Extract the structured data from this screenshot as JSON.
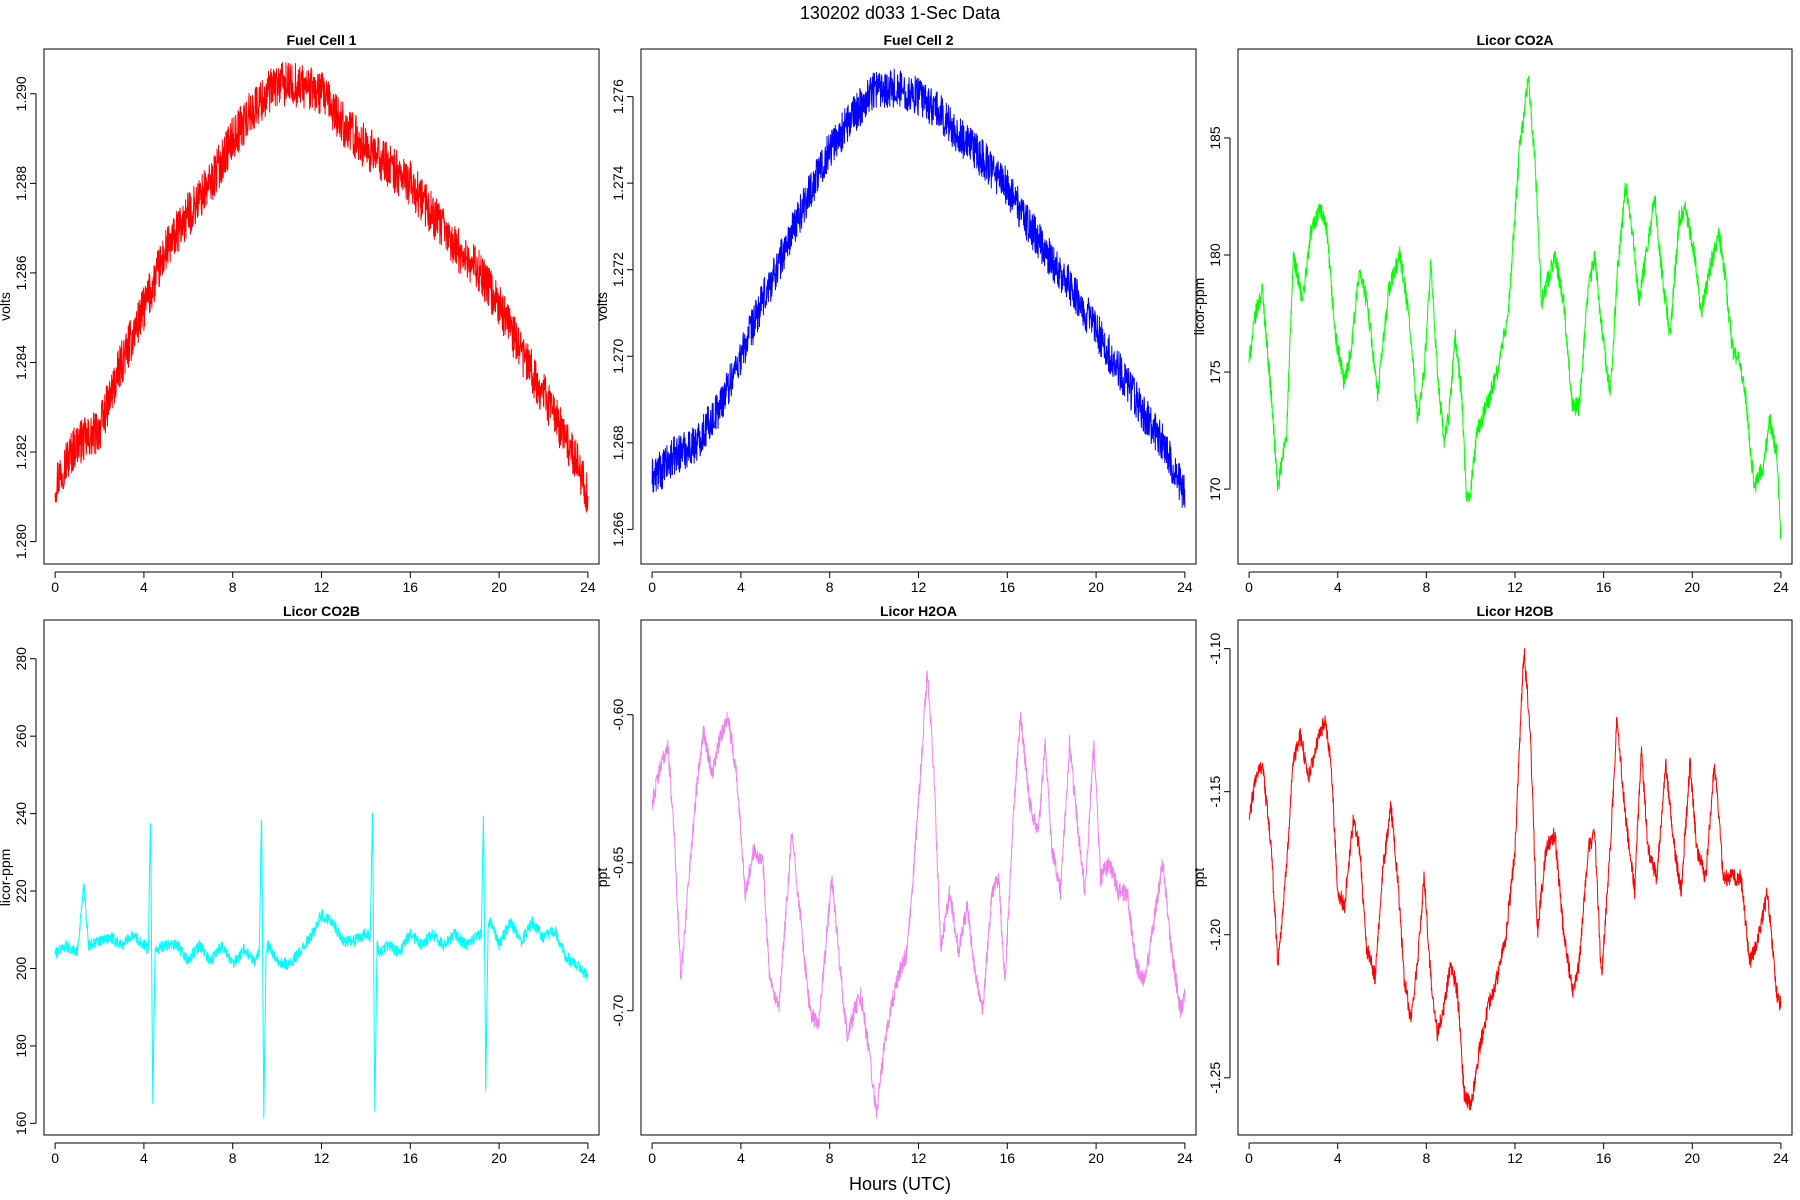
{
  "page": {
    "title": "130202   d033   1-Sec Data",
    "xlabel": "Hours (UTC)"
  },
  "chart_data": [
    {
      "type": "line",
      "title": "Fuel Cell 1",
      "ylabel": "volts",
      "color": "#ff0000",
      "xlim": [
        -0.5,
        24.5
      ],
      "ylim": [
        1.2795,
        1.291
      ],
      "xticks": [
        0,
        4,
        8,
        12,
        16,
        20,
        24
      ],
      "yticks": [
        1.28,
        1.282,
        1.284,
        1.286,
        1.288,
        1.29
      ],
      "ytick_labels": [
        "1.280",
        "1.282",
        "1.284",
        "1.286",
        "1.288",
        "1.290"
      ],
      "band": 0.0005,
      "series": [
        {
          "x": [
            0,
            0.5,
            1,
            1.5,
            2,
            3,
            4,
            5,
            6,
            7,
            8,
            9,
            10,
            11,
            12,
            13,
            14,
            15,
            16,
            17,
            18,
            19,
            20,
            21,
            22,
            23,
            23.5,
            24
          ],
          "values": [
            1.2813,
            1.2818,
            1.2822,
            1.2823,
            1.2825,
            1.284,
            1.2852,
            1.2865,
            1.2873,
            1.288,
            1.289,
            1.2897,
            1.2902,
            1.2902,
            1.29,
            1.2893,
            1.2888,
            1.2884,
            1.288,
            1.2873,
            1.2866,
            1.2861,
            1.2853,
            1.2842,
            1.2833,
            1.2823,
            1.2818,
            1.281
          ]
        }
      ]
    },
    {
      "type": "line",
      "title": "Fuel Cell 2",
      "ylabel": "volts",
      "color": "#0000ff",
      "xlim": [
        -0.5,
        24.5
      ],
      "ylim": [
        1.2652,
        1.2771
      ],
      "xticks": [
        0,
        4,
        8,
        12,
        16,
        20,
        24
      ],
      "yticks": [
        1.266,
        1.268,
        1.27,
        1.272,
        1.274,
        1.276
      ],
      "ytick_labels": [
        "1.266",
        "1.268",
        "1.270",
        "1.272",
        "1.274",
        "1.276"
      ],
      "band": 0.00045,
      "series": [
        {
          "x": [
            0,
            0.5,
            1,
            2,
            3,
            4,
            5,
            6,
            7,
            8,
            9,
            10,
            11,
            12,
            13,
            14,
            15,
            16,
            17,
            18,
            19,
            20,
            21,
            22,
            23,
            23.5,
            24
          ],
          "values": [
            1.2672,
            1.2674,
            1.2677,
            1.268,
            1.2688,
            1.27,
            1.2713,
            1.2725,
            1.2737,
            1.2748,
            1.2755,
            1.2762,
            1.2762,
            1.276,
            1.2756,
            1.275,
            1.2745,
            1.2739,
            1.273,
            1.2722,
            1.2715,
            1.2706,
            1.2697,
            1.2688,
            1.268,
            1.2674,
            1.2668
          ]
        }
      ]
    },
    {
      "type": "line",
      "title": "Licor CO2A",
      "ylabel": "licor-ppm",
      "color": "#00ff00",
      "xlim": [
        -0.5,
        24.5
      ],
      "ylim": [
        166.8,
        188.8
      ],
      "xticks": [
        0,
        4,
        8,
        12,
        16,
        20,
        24
      ],
      "yticks": [
        170,
        175,
        180,
        185
      ],
      "ytick_labels": [
        "170",
        "175",
        "180",
        "185"
      ],
      "band": 0.4,
      "series": [
        {
          "x": [
            0,
            0.3,
            0.6,
            1.0,
            1.3,
            1.7,
            2.0,
            2.4,
            2.8,
            3.2,
            3.5,
            3.9,
            4.3,
            4.6,
            5.0,
            5.4,
            5.8,
            6.3,
            6.8,
            7.2,
            7.6,
            7.9,
            8.2,
            8.5,
            8.8,
            9.0,
            9.3,
            9.6,
            9.8,
            10.0,
            10.3,
            10.7,
            11.2,
            11.7,
            12.2,
            12.6,
            12.9,
            13.2,
            13.5,
            13.8,
            14.2,
            14.6,
            14.9,
            15.3,
            15.6,
            15.9,
            16.3,
            16.6,
            17.0,
            17.3,
            17.6,
            17.9,
            18.3,
            18.6,
            19.0,
            19.4,
            19.7,
            20.1,
            20.4,
            20.8,
            21.2,
            21.5,
            21.8,
            22.1,
            22.4,
            22.8,
            23.2,
            23.5,
            23.8,
            24.0
          ],
          "values": [
            175.5,
            177.5,
            178.5,
            174.0,
            170.0,
            172.5,
            180.0,
            178.0,
            181.0,
            182.0,
            181.0,
            176.5,
            174.5,
            176.0,
            179.5,
            177.5,
            174.0,
            178.5,
            180.0,
            177.5,
            173.0,
            175.0,
            179.5,
            175.0,
            172.0,
            173.0,
            176.5,
            174.0,
            169.5,
            170.0,
            172.5,
            173.5,
            175.0,
            177.5,
            184.5,
            187.5,
            184.0,
            178.0,
            179.0,
            180.0,
            178.0,
            173.5,
            173.5,
            178.5,
            180.0,
            177.0,
            174.0,
            179.0,
            183.0,
            181.0,
            178.0,
            180.0,
            182.5,
            179.5,
            176.5,
            181.5,
            182.0,
            180.0,
            177.5,
            179.5,
            181.0,
            179.0,
            176.0,
            175.5,
            174.0,
            170.0,
            171.0,
            173.0,
            171.5,
            168.0
          ]
        }
      ]
    },
    {
      "type": "line",
      "title": "Licor CO2B",
      "ylabel": "licor-ppm",
      "color": "#00ffff",
      "xlim": [
        -0.5,
        24.5
      ],
      "ylim": [
        157,
        290
      ],
      "xticks": [
        0,
        4,
        8,
        12,
        16,
        20,
        24
      ],
      "yticks": [
        160,
        180,
        200,
        220,
        240,
        260,
        280
      ],
      "ytick_labels": [
        "160",
        "180",
        "200",
        "220",
        "240",
        "260",
        "280"
      ],
      "band": 1.5,
      "series": [
        {
          "x": [
            0,
            0.5,
            1,
            1.3,
            1.5,
            2,
            2.5,
            3,
            3.5,
            4,
            4.2,
            4.3,
            4.4,
            4.5,
            4.6,
            5,
            5.5,
            6,
            6.5,
            7,
            7.5,
            8,
            8.5,
            9,
            9.2,
            9.3,
            9.4,
            9.5,
            9.6,
            10,
            10.5,
            11,
            11.5,
            12,
            12.5,
            13,
            13.5,
            14,
            14.2,
            14.3,
            14.4,
            14.5,
            14.6,
            15,
            15.5,
            16,
            16.5,
            17,
            17.5,
            18,
            18.5,
            19,
            19.2,
            19.3,
            19.4,
            19.5,
            19.6,
            20,
            20.5,
            21,
            21.5,
            22,
            22.5,
            23,
            23.5,
            24
          ],
          "values": [
            204,
            206,
            204,
            222,
            206,
            207,
            208,
            206,
            209,
            206,
            205,
            240,
            164,
            205,
            205,
            206,
            206,
            202,
            206,
            202,
            206,
            201,
            205,
            202,
            204,
            242,
            162,
            204,
            206,
            202,
            201,
            204,
            208,
            214,
            212,
            207,
            207,
            209,
            208,
            242,
            162,
            206,
            204,
            206,
            204,
            209,
            206,
            209,
            206,
            209,
            206,
            208,
            209,
            240,
            169,
            210,
            212,
            206,
            212,
            207,
            212,
            208,
            210,
            203,
            201,
            198
          ]
        }
      ]
    },
    {
      "type": "line",
      "title": "Licor H2OA",
      "ylabel": "ppt",
      "color": "#ee82ee",
      "xlim": [
        -0.5,
        24.5
      ],
      "ylim": [
        -0.742,
        -0.568
      ],
      "xticks": [
        0,
        4,
        8,
        12,
        16,
        20,
        24
      ],
      "yticks": [
        -0.7,
        -0.65,
        -0.6
      ],
      "ytick_labels": [
        "-0.70",
        "-0.65",
        "-0.60"
      ],
      "band": 0.003,
      "series": [
        {
          "x": [
            0,
            0.3,
            0.7,
            1.0,
            1.3,
            1.6,
            2.0,
            2.3,
            2.7,
            3.0,
            3.4,
            3.8,
            4.2,
            4.6,
            5.0,
            5.3,
            5.7,
            6.0,
            6.3,
            6.7,
            7.1,
            7.5,
            7.8,
            8.1,
            8.4,
            8.8,
            9.1,
            9.4,
            9.8,
            10.1,
            10.5,
            11.0,
            11.5,
            12.0,
            12.4,
            12.7,
            13.0,
            13.4,
            13.8,
            14.2,
            14.6,
            14.9,
            15.3,
            15.6,
            15.9,
            16.3,
            16.6,
            17.0,
            17.4,
            17.7,
            18.0,
            18.4,
            18.8,
            19.2,
            19.5,
            19.9,
            20.2,
            20.6,
            21.0,
            21.4,
            21.8,
            22.2,
            22.6,
            23.0,
            23.4,
            23.8,
            24.0
          ],
          "values": [
            -0.63,
            -0.62,
            -0.61,
            -0.64,
            -0.69,
            -0.66,
            -0.625,
            -0.605,
            -0.62,
            -0.61,
            -0.6,
            -0.62,
            -0.66,
            -0.645,
            -0.65,
            -0.69,
            -0.7,
            -0.67,
            -0.64,
            -0.67,
            -0.7,
            -0.705,
            -0.68,
            -0.655,
            -0.68,
            -0.71,
            -0.7,
            -0.695,
            -0.715,
            -0.735,
            -0.71,
            -0.69,
            -0.68,
            -0.63,
            -0.585,
            -0.62,
            -0.68,
            -0.66,
            -0.68,
            -0.665,
            -0.69,
            -0.7,
            -0.66,
            -0.655,
            -0.69,
            -0.63,
            -0.6,
            -0.63,
            -0.64,
            -0.61,
            -0.645,
            -0.66,
            -0.61,
            -0.64,
            -0.66,
            -0.61,
            -0.655,
            -0.65,
            -0.66,
            -0.66,
            -0.685,
            -0.69,
            -0.67,
            -0.65,
            -0.68,
            -0.7,
            -0.695
          ]
        }
      ]
    },
    {
      "type": "line",
      "title": "Licor H2OB",
      "ylabel": "ppt",
      "color": "#ff0000",
      "xlim": [
        -0.5,
        24.5
      ],
      "ylim": [
        -1.27,
        -1.09
      ],
      "xticks": [
        0,
        4,
        8,
        12,
        16,
        20,
        24
      ],
      "yticks": [
        -1.25,
        -1.2,
        -1.15,
        -1.1
      ],
      "ytick_labels": [
        "-1.25",
        "-1.20",
        "-1.15",
        "-1.10"
      ],
      "band": 0.003,
      "series": [
        {
          "x": [
            0,
            0.3,
            0.6,
            1.0,
            1.3,
            1.6,
            2.0,
            2.3,
            2.7,
            3.0,
            3.4,
            3.7,
            4.0,
            4.3,
            4.7,
            5.0,
            5.3,
            5.7,
            6.0,
            6.4,
            6.7,
            7.0,
            7.3,
            7.6,
            7.9,
            8.2,
            8.5,
            8.8,
            9.1,
            9.4,
            9.7,
            10.0,
            10.4,
            10.8,
            11.2,
            11.6,
            12.0,
            12.4,
            12.7,
            13.0,
            13.4,
            13.8,
            14.2,
            14.6,
            14.9,
            15.3,
            15.6,
            15.9,
            16.3,
            16.6,
            17.0,
            17.4,
            17.7,
            18.0,
            18.4,
            18.8,
            19.2,
            19.5,
            19.9,
            20.2,
            20.6,
            21.0,
            21.4,
            21.8,
            22.2,
            22.6,
            23.0,
            23.4,
            23.8,
            24.0
          ],
          "values": [
            -1.16,
            -1.145,
            -1.14,
            -1.17,
            -1.21,
            -1.185,
            -1.14,
            -1.13,
            -1.145,
            -1.135,
            -1.125,
            -1.14,
            -1.185,
            -1.19,
            -1.16,
            -1.17,
            -1.205,
            -1.215,
            -1.18,
            -1.155,
            -1.18,
            -1.215,
            -1.23,
            -1.21,
            -1.18,
            -1.215,
            -1.235,
            -1.225,
            -1.21,
            -1.22,
            -1.255,
            -1.26,
            -1.24,
            -1.225,
            -1.215,
            -1.2,
            -1.17,
            -1.1,
            -1.13,
            -1.2,
            -1.17,
            -1.165,
            -1.2,
            -1.22,
            -1.21,
            -1.17,
            -1.165,
            -1.215,
            -1.17,
            -1.125,
            -1.16,
            -1.185,
            -1.135,
            -1.17,
            -1.18,
            -1.14,
            -1.17,
            -1.185,
            -1.14,
            -1.17,
            -1.18,
            -1.14,
            -1.18,
            -1.18,
            -1.18,
            -1.21,
            -1.2,
            -1.185,
            -1.22,
            -1.225
          ]
        }
      ]
    }
  ]
}
